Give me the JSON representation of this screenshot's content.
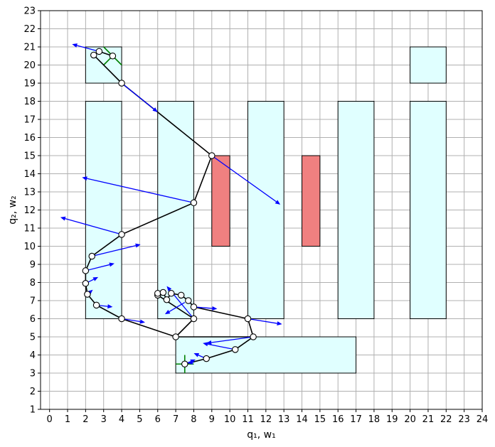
{
  "chart_data": {
    "type": "scatter",
    "xlabel": "q₁, w₁",
    "ylabel": "q₂, w₂",
    "xlim": [
      -0.5,
      24
    ],
    "ylim": [
      1,
      23
    ],
    "x_ticks": [
      0,
      1,
      2,
      3,
      4,
      5,
      6,
      7,
      8,
      9,
      10,
      11,
      12,
      13,
      14,
      15,
      16,
      17,
      18,
      19,
      20,
      21,
      22,
      23,
      24
    ],
    "y_ticks": [
      1,
      2,
      3,
      4,
      5,
      6,
      7,
      8,
      9,
      10,
      11,
      12,
      13,
      14,
      15,
      16,
      17,
      18,
      19,
      20,
      21,
      22,
      23
    ],
    "grid": true,
    "colors": {
      "safe_region": "#e0ffff",
      "obstacle": "#f08080",
      "path": "#000000",
      "arrows": "#0000ff",
      "markers_green": "#008000"
    },
    "safe_regions": [
      {
        "x0": 2,
        "y0": 19,
        "x1": 4,
        "y1": 21
      },
      {
        "x0": 20,
        "y0": 19,
        "x1": 22,
        "y1": 21
      },
      {
        "x0": 2,
        "y0": 6,
        "x1": 4,
        "y1": 18
      },
      {
        "x0": 6,
        "y0": 6,
        "x1": 8,
        "y1": 18
      },
      {
        "x0": 11,
        "y0": 6,
        "x1": 13,
        "y1": 18
      },
      {
        "x0": 16,
        "y0": 6,
        "x1": 18,
        "y1": 18
      },
      {
        "x0": 20,
        "y0": 6,
        "x1": 22,
        "y1": 18
      },
      {
        "x0": 7,
        "y0": 3,
        "x1": 17,
        "y1": 5
      }
    ],
    "obstacles": [
      {
        "x0": 9,
        "y0": 10,
        "x1": 10,
        "y1": 15
      },
      {
        "x0": 14,
        "y0": 10,
        "x1": 15,
        "y1": 15
      }
    ],
    "path_points": [
      {
        "x": 7.5,
        "y": 3.5
      },
      {
        "x": 8.7,
        "y": 3.8
      },
      {
        "x": 10.3,
        "y": 4.3
      },
      {
        "x": 11.3,
        "y": 5.0
      },
      {
        "x": 7.0,
        "y": 5.0
      },
      {
        "x": 4.0,
        "y": 6.0
      },
      {
        "x": 2.6,
        "y": 6.75
      },
      {
        "x": 2.1,
        "y": 7.35
      },
      {
        "x": 2.0,
        "y": 7.95
      },
      {
        "x": 2.0,
        "y": 8.65
      },
      {
        "x": 2.35,
        "y": 9.45
      },
      {
        "x": 4.0,
        "y": 10.65
      },
      {
        "x": 8.0,
        "y": 12.4
      },
      {
        "x": 9.0,
        "y": 15.0
      },
      {
        "x": 4.0,
        "y": 19.0
      },
      {
        "x": 2.45,
        "y": 20.55
      },
      {
        "x": 2.75,
        "y": 20.75
      },
      {
        "x": 3.5,
        "y": 20.5
      },
      {
        "x": 8.0,
        "y": 6.0
      },
      {
        "x": 6.0,
        "y": 7.3
      },
      {
        "x": 6.0,
        "y": 7.4
      },
      {
        "x": 6.3,
        "y": 7.45
      },
      {
        "x": 6.5,
        "y": 7.05
      },
      {
        "x": 6.75,
        "y": 7.4
      },
      {
        "x": 7.3,
        "y": 7.3
      },
      {
        "x": 7.7,
        "y": 7.0
      },
      {
        "x": 8.0,
        "y": 6.65
      },
      {
        "x": 11.0,
        "y": 6.0
      }
    ],
    "path_lines": [
      [
        [
          7.5,
          3.5
        ],
        [
          8.7,
          3.8
        ],
        [
          10.3,
          4.3
        ],
        [
          11.3,
          5.0
        ],
        [
          7.0,
          5.0
        ],
        [
          4.0,
          6.0
        ],
        [
          2.6,
          6.75
        ],
        [
          2.1,
          7.35
        ],
        [
          2.0,
          7.95
        ],
        [
          2.0,
          8.65
        ],
        [
          2.35,
          9.45
        ],
        [
          4.0,
          10.65
        ],
        [
          8.0,
          12.4
        ],
        [
          9.0,
          15.0
        ],
        [
          4.0,
          19.0
        ],
        [
          2.45,
          20.55
        ]
      ],
      [
        [
          2.75,
          20.75
        ],
        [
          3.5,
          20.5
        ]
      ],
      [
        [
          7.0,
          5.0
        ],
        [
          8.0,
          6.0
        ],
        [
          6.0,
          7.3
        ],
        [
          6.0,
          7.4
        ],
        [
          6.3,
          7.45
        ],
        [
          6.5,
          7.05
        ],
        [
          6.75,
          7.4
        ],
        [
          7.3,
          7.3
        ],
        [
          7.7,
          7.0
        ],
        [
          8.0,
          6.65
        ],
        [
          11.0,
          6.0
        ],
        [
          11.3,
          5.0
        ]
      ]
    ],
    "arrows": [
      {
        "x": 4.0,
        "y": 19.0,
        "dx": 2.0,
        "dy": -1.6
      },
      {
        "x": 2.75,
        "y": 20.75,
        "dx": -1.5,
        "dy": 0.4
      },
      {
        "x": 9.0,
        "y": 15.0,
        "dx": 3.8,
        "dy": -2.7
      },
      {
        "x": 8.0,
        "y": 12.4,
        "dx": -6.2,
        "dy": 1.4
      },
      {
        "x": 4.0,
        "y": 10.65,
        "dx": -3.4,
        "dy": 0.95
      },
      {
        "x": 2.35,
        "y": 9.45,
        "dx": 2.7,
        "dy": 0.65
      },
      {
        "x": 2.0,
        "y": 8.65,
        "dx": 1.6,
        "dy": 0.4
      },
      {
        "x": 2.0,
        "y": 7.95,
        "dx": 0.7,
        "dy": 0.35
      },
      {
        "x": 2.1,
        "y": 7.35,
        "dx": 0.3,
        "dy": 0.25
      },
      {
        "x": 2.6,
        "y": 6.75,
        "dx": 0.9,
        "dy": -0.1
      },
      {
        "x": 4.0,
        "y": 6.0,
        "dx": 1.3,
        "dy": -0.2
      },
      {
        "x": 8.0,
        "y": 6.0,
        "dx": -1.5,
        "dy": 1.8
      },
      {
        "x": 7.5,
        "y": 6.9,
        "dx": -1.1,
        "dy": -0.65
      },
      {
        "x": 8.0,
        "y": 6.65,
        "dx": 1.3,
        "dy": -0.1
      },
      {
        "x": 11.0,
        "y": 6.0,
        "dx": 1.9,
        "dy": -0.3
      },
      {
        "x": 11.3,
        "y": 5.0,
        "dx": -2.6,
        "dy": -0.35
      },
      {
        "x": 10.3,
        "y": 4.3,
        "dx": -1.8,
        "dy": 0.35
      },
      {
        "x": 8.7,
        "y": 3.8,
        "dx": -0.7,
        "dy": 0.3
      },
      {
        "x": 7.5,
        "y": 3.5,
        "dx": 0.6,
        "dy": 0.25
      },
      {
        "x": 8.0,
        "y": 3.6,
        "dx": -0.35,
        "dy": -0.05
      }
    ],
    "green_markers": [
      {
        "x1": 3.0,
        "y1": 21.0,
        "x2": 4.0,
        "y2": 20.0
      },
      {
        "x1": 3.0,
        "y1": 20.0,
        "x2": 3.6,
        "y2": 20.6
      },
      {
        "x1": 7.5,
        "y1": 3.0,
        "x2": 7.5,
        "y2": 4.0
      },
      {
        "x1": 7.0,
        "y1": 3.5,
        "x2": 8.0,
        "y2": 3.5
      }
    ]
  }
}
